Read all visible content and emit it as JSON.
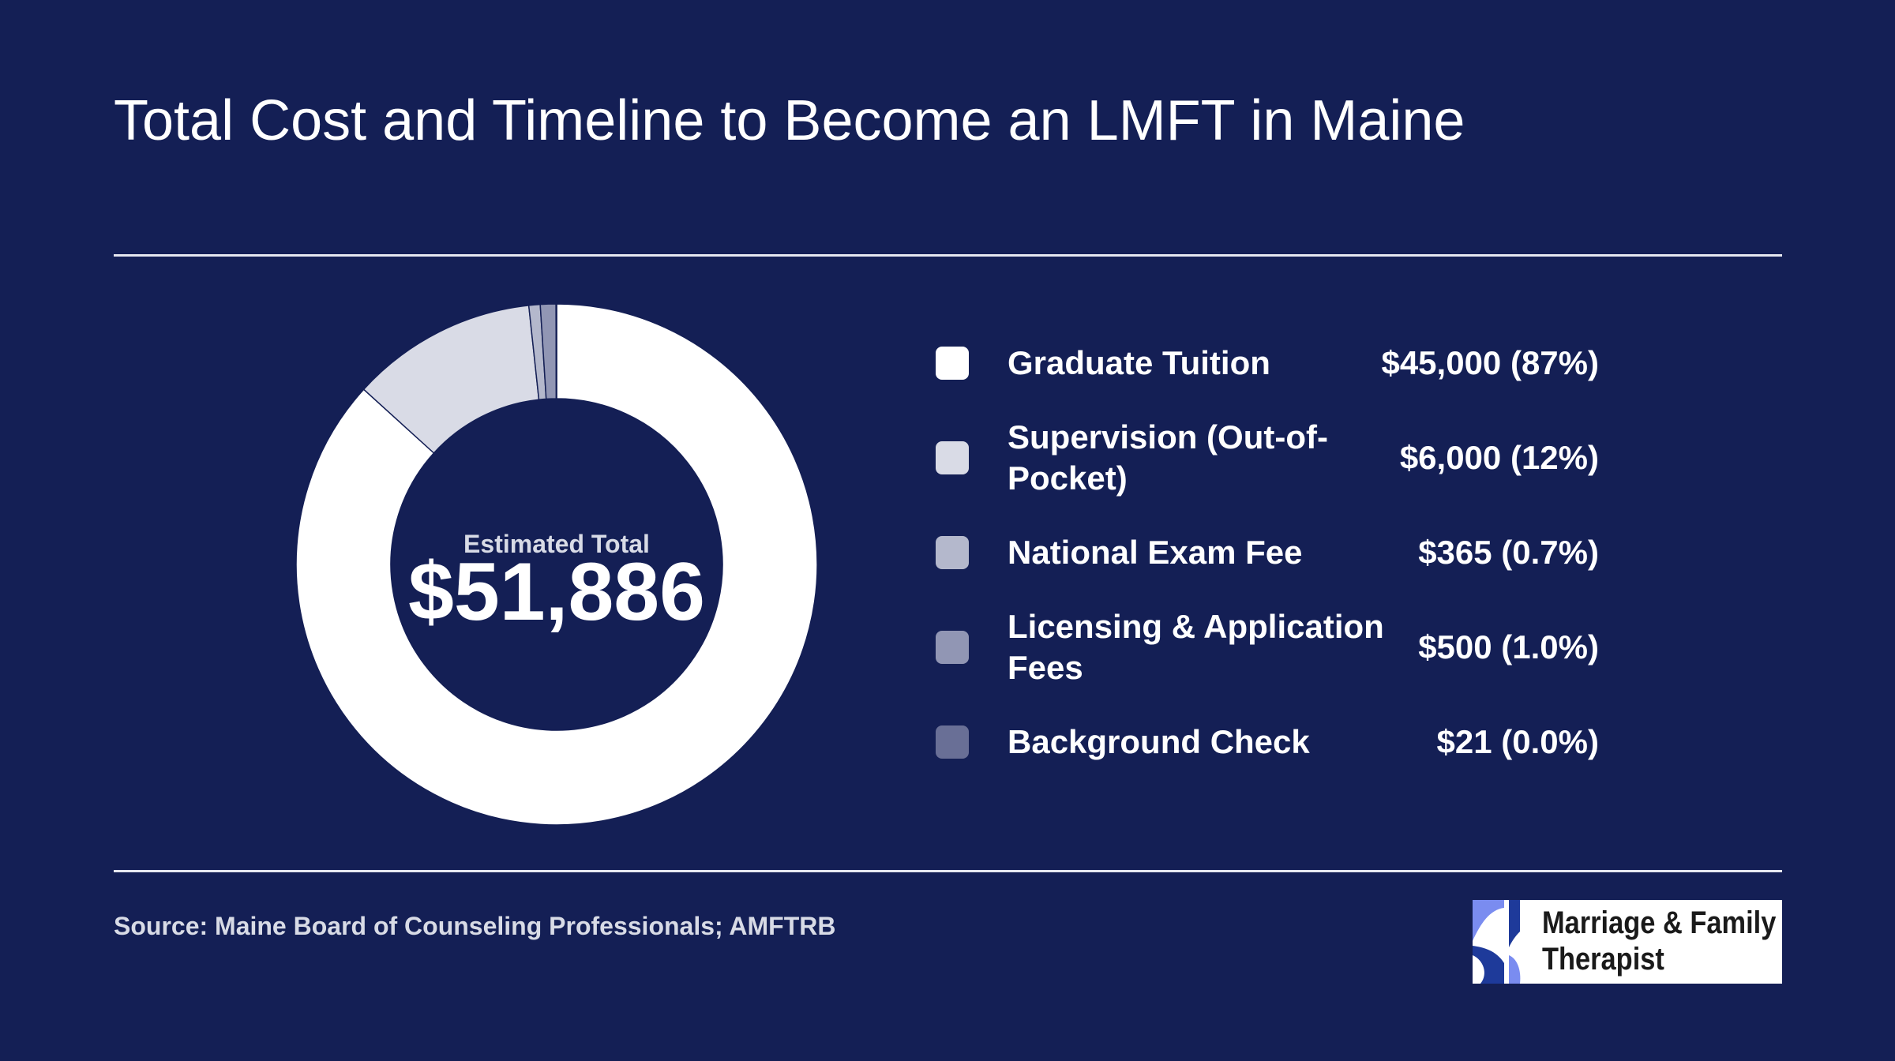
{
  "title": "Total Cost and Timeline to Become an LMFT in Maine",
  "center": {
    "label": "Estimated Total",
    "value": "$51,886"
  },
  "legend": [
    {
      "label": "Graduate Tuition",
      "value": "$45,000 (87%)",
      "color": "#ffffff"
    },
    {
      "label": "Supervision (Out-of-Pocket)",
      "value": "$6,000 (12%)",
      "color": "#d9dbe6"
    },
    {
      "label": "National Exam Fee",
      "value": "$365 (0.7%)",
      "color": "#b4b8cc"
    },
    {
      "label": "Licensing & Application Fees",
      "value": "$500 (1.0%)",
      "color": "#9196b4"
    },
    {
      "label": "Background Check",
      "value": "$21 (0.0%)",
      "color": "#696f96"
    }
  ],
  "source": "Source: Maine Board of Counseling Professionals; AMFTRB",
  "logo": {
    "line1": "Marriage & Family",
    "line2": "Therapist",
    "color": "#1e3a9a"
  },
  "chart_data": {
    "type": "pie",
    "variant": "donut",
    "categories": [
      "Graduate Tuition",
      "Supervision (Out-of-Pocket)",
      "National Exam Fee",
      "Licensing & Application Fees",
      "Background Check"
    ],
    "values": [
      45000,
      6000,
      365,
      500,
      21
    ],
    "colors": [
      "#ffffff",
      "#d9dbe6",
      "#b4b8cc",
      "#9196b4",
      "#696f96"
    ],
    "total": 51886,
    "legend": "right"
  }
}
